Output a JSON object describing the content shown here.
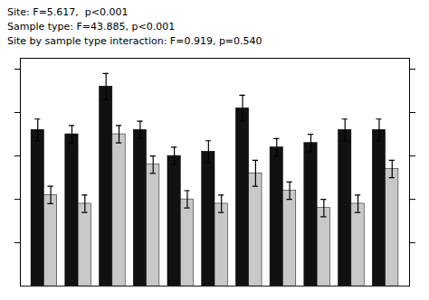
{
  "chart_data": {
    "type": "bar",
    "annotations": [
      "Site: F=5.617,  p<0.001",
      "Sample type: F=43.885, p<0.001",
      "Site by sample type interaction: F=0.919, p=0.540"
    ],
    "categories": [
      null,
      null,
      null,
      null,
      null,
      null,
      null,
      null,
      null,
      null,
      null
    ],
    "series": [
      {
        "color": "#111111",
        "values": [
          0.72,
          0.7,
          0.92,
          0.72,
          0.6,
          0.62,
          0.82,
          0.64,
          0.66,
          0.72,
          0.72
        ],
        "errors": [
          0.05,
          0.04,
          0.06,
          0.04,
          0.04,
          0.05,
          0.06,
          0.04,
          0.04,
          0.05,
          0.05
        ]
      },
      {
        "color": "#c8c8c8",
        "values": [
          0.42,
          0.38,
          0.7,
          0.56,
          0.4,
          0.38,
          0.52,
          0.44,
          0.36,
          0.38,
          0.54
        ],
        "errors": [
          0.04,
          0.04,
          0.04,
          0.04,
          0.04,
          0.04,
          0.06,
          0.04,
          0.04,
          0.04,
          0.04
        ]
      }
    ],
    "ylim": [
      0.0,
      1.05
    ],
    "yticks": [
      0.2,
      0.4,
      0.6,
      0.8,
      1.0
    ],
    "tick_labels": false,
    "grid": false
  }
}
